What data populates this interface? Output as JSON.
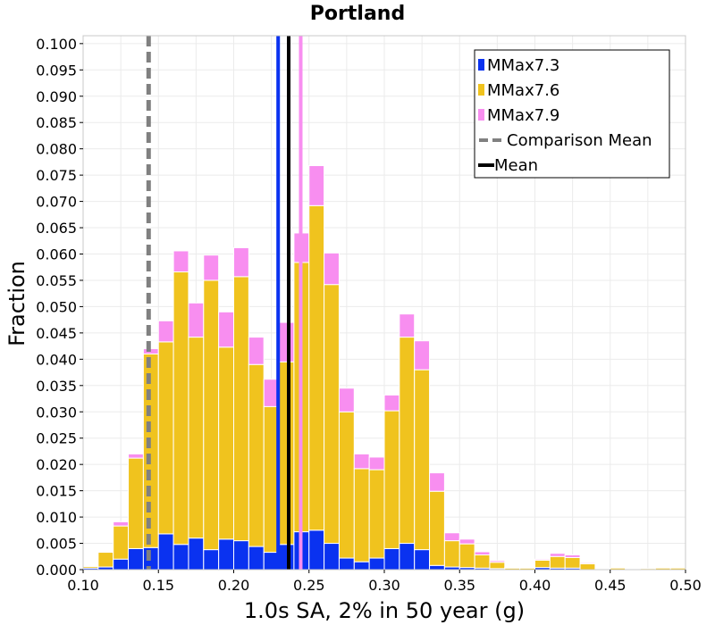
{
  "chart_data": {
    "type": "bar",
    "stacked": true,
    "title": "Portland",
    "xlabel": "1.0s SA, 2% in 50 year (g)",
    "ylabel": "Fraction",
    "xlim": [
      0.1,
      0.5
    ],
    "ylim": [
      0.0,
      0.1015
    ],
    "bin_width": 0.01,
    "grid": true,
    "legend_position": "top-right",
    "x_ticks": [
      "0.10",
      "0.15",
      "0.20",
      "0.25",
      "0.30",
      "0.35",
      "0.40",
      "0.45",
      "0.50"
    ],
    "y_ticks": [
      "0.000",
      "0.005",
      "0.010",
      "0.015",
      "0.020",
      "0.025",
      "0.030",
      "0.035",
      "0.040",
      "0.045",
      "0.050",
      "0.055",
      "0.060",
      "0.065",
      "0.070",
      "0.075",
      "0.080",
      "0.085",
      "0.090",
      "0.095",
      "0.100"
    ],
    "bin_starts": [
      0.1,
      0.11,
      0.12,
      0.13,
      0.14,
      0.15,
      0.16,
      0.17,
      0.18,
      0.19,
      0.2,
      0.21,
      0.22,
      0.23,
      0.24,
      0.25,
      0.26,
      0.27,
      0.28,
      0.29,
      0.3,
      0.31,
      0.32,
      0.33,
      0.34,
      0.35,
      0.36,
      0.37,
      0.38,
      0.39,
      0.4,
      0.41,
      0.42,
      0.43,
      0.44,
      0.45,
      0.46,
      0.47,
      0.48,
      0.49
    ],
    "series": [
      {
        "name": "MMax7.3",
        "color": "#0a32f0",
        "values": [
          0.0003,
          0.0005,
          0.002,
          0.004,
          0.0042,
          0.0068,
          0.0048,
          0.006,
          0.0038,
          0.0058,
          0.0055,
          0.0044,
          0.0033,
          0.0048,
          0.0072,
          0.0075,
          0.005,
          0.0022,
          0.0015,
          0.0022,
          0.004,
          0.005,
          0.0038,
          0.0008,
          0.0005,
          0.0004,
          0.0003,
          0.0002,
          0.0,
          0.0,
          0.0004,
          0.0003,
          0.0003,
          0.0,
          0.0,
          0.0,
          0.0,
          0.0,
          0.0,
          0.0
        ]
      },
      {
        "name": "MMax7.6",
        "color": "#f0c31e",
        "values": [
          0.0003,
          0.0028,
          0.0063,
          0.0172,
          0.0368,
          0.0365,
          0.0518,
          0.0382,
          0.0512,
          0.0365,
          0.0502,
          0.0346,
          0.0277,
          0.0347,
          0.0512,
          0.0617,
          0.0492,
          0.0278,
          0.0177,
          0.0168,
          0.0262,
          0.0392,
          0.0342,
          0.0141,
          0.005,
          0.0045,
          0.0025,
          0.0012,
          0.0003,
          0.0003,
          0.0014,
          0.0022,
          0.002,
          0.0011,
          0.0001,
          0.0003,
          0.0001,
          0.0002,
          0.0003,
          0.0003
        ]
      },
      {
        "name": "MMax7.9",
        "color": "#f88ef0",
        "values": [
          0.0,
          0.0,
          0.0008,
          0.0008,
          0.001,
          0.004,
          0.004,
          0.0065,
          0.0048,
          0.0067,
          0.0055,
          0.0052,
          0.0052,
          0.0075,
          0.0056,
          0.0076,
          0.006,
          0.0045,
          0.0028,
          0.0024,
          0.003,
          0.0044,
          0.0055,
          0.0035,
          0.0015,
          0.0009,
          0.0006,
          0.0003,
          0.0001,
          0.0001,
          0.0002,
          0.0006,
          0.0005,
          0.0002,
          0.0,
          0.0,
          0.0,
          0.0,
          0.0,
          0.0
        ]
      }
    ],
    "reference_lines": [
      {
        "name": "MMax7.3 mean",
        "x": 0.2295,
        "color": "#0a32f0",
        "style": "solid"
      },
      {
        "name": "MMax7.9 mean",
        "x": 0.2445,
        "color": "#f88ef0",
        "style": "solid"
      },
      {
        "name": "Comparison Mean",
        "x": 0.1435,
        "color": "#808080",
        "style": "dashed"
      },
      {
        "name": "Mean",
        "x": 0.2365,
        "color": "#000000",
        "style": "solid"
      }
    ],
    "legend": [
      {
        "label": "MMax7.3",
        "color": "#0a32f0",
        "kind": "box"
      },
      {
        "label": "MMax7.6",
        "color": "#f0c31e",
        "kind": "box"
      },
      {
        "label": "MMax7.9",
        "color": "#f88ef0",
        "kind": "box"
      },
      {
        "label": "Comparison Mean",
        "color": "#808080",
        "kind": "dashed-line"
      },
      {
        "label": "Mean",
        "color": "#000000",
        "kind": "line"
      }
    ]
  }
}
